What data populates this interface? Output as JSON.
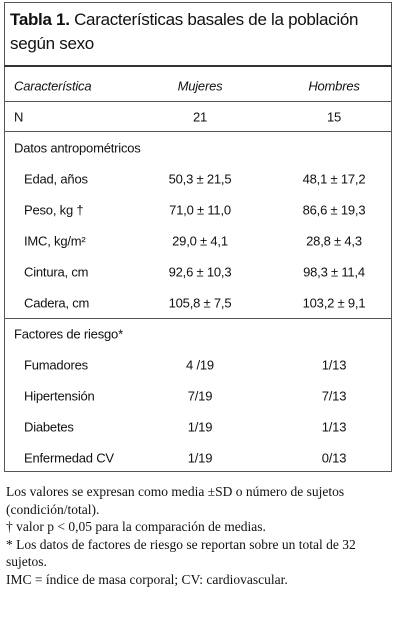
{
  "title": {
    "label": "Tabla 1.",
    "text": "Características basales de la población según sexo"
  },
  "table": {
    "header": [
      "Característica",
      "Mujeres",
      "Hombres"
    ],
    "rows": [
      [
        "N",
        "21",
        "15"
      ]
    ],
    "sections": [
      {
        "title": "Datos antropométricos",
        "rows": [
          [
            "Edad, años",
            "50,3 ± 21,5",
            "48,1 ± 17,2"
          ],
          [
            "Peso, kg †",
            "71,0 ± 11,0",
            "86,6 ± 19,3"
          ],
          [
            "IMC, kg/m²",
            "29,0 ± 4,1",
            "28,8 ± 4,3"
          ],
          [
            "Cintura, cm",
            "92,6 ± 10,3",
            "98,3 ± 11,4"
          ],
          [
            "Cadera, cm",
            "105,8 ± 7,5",
            "103,2 ± 9,1"
          ]
        ]
      },
      {
        "title": "Factores de riesgo*",
        "rows": [
          [
            "Fumadores",
            "4 /19",
            "1/13"
          ],
          [
            "Hipertensión",
            "7/19",
            "7/13"
          ],
          [
            "Diabetes",
            "1/19",
            "1/13"
          ],
          [
            "Enfermedad CV",
            "1/19",
            "0/13"
          ]
        ]
      }
    ]
  },
  "footnotes": [
    "Los valores se expresan como media ±SD o número de sujetos (condición/total).",
    "† valor p < 0,05 para la comparación de medias.",
    "* Los datos de factores de riesgo se reportan sobre un total de 32 sujetos.",
    "IMC = índice de masa corporal; CV: cardiovascular."
  ]
}
